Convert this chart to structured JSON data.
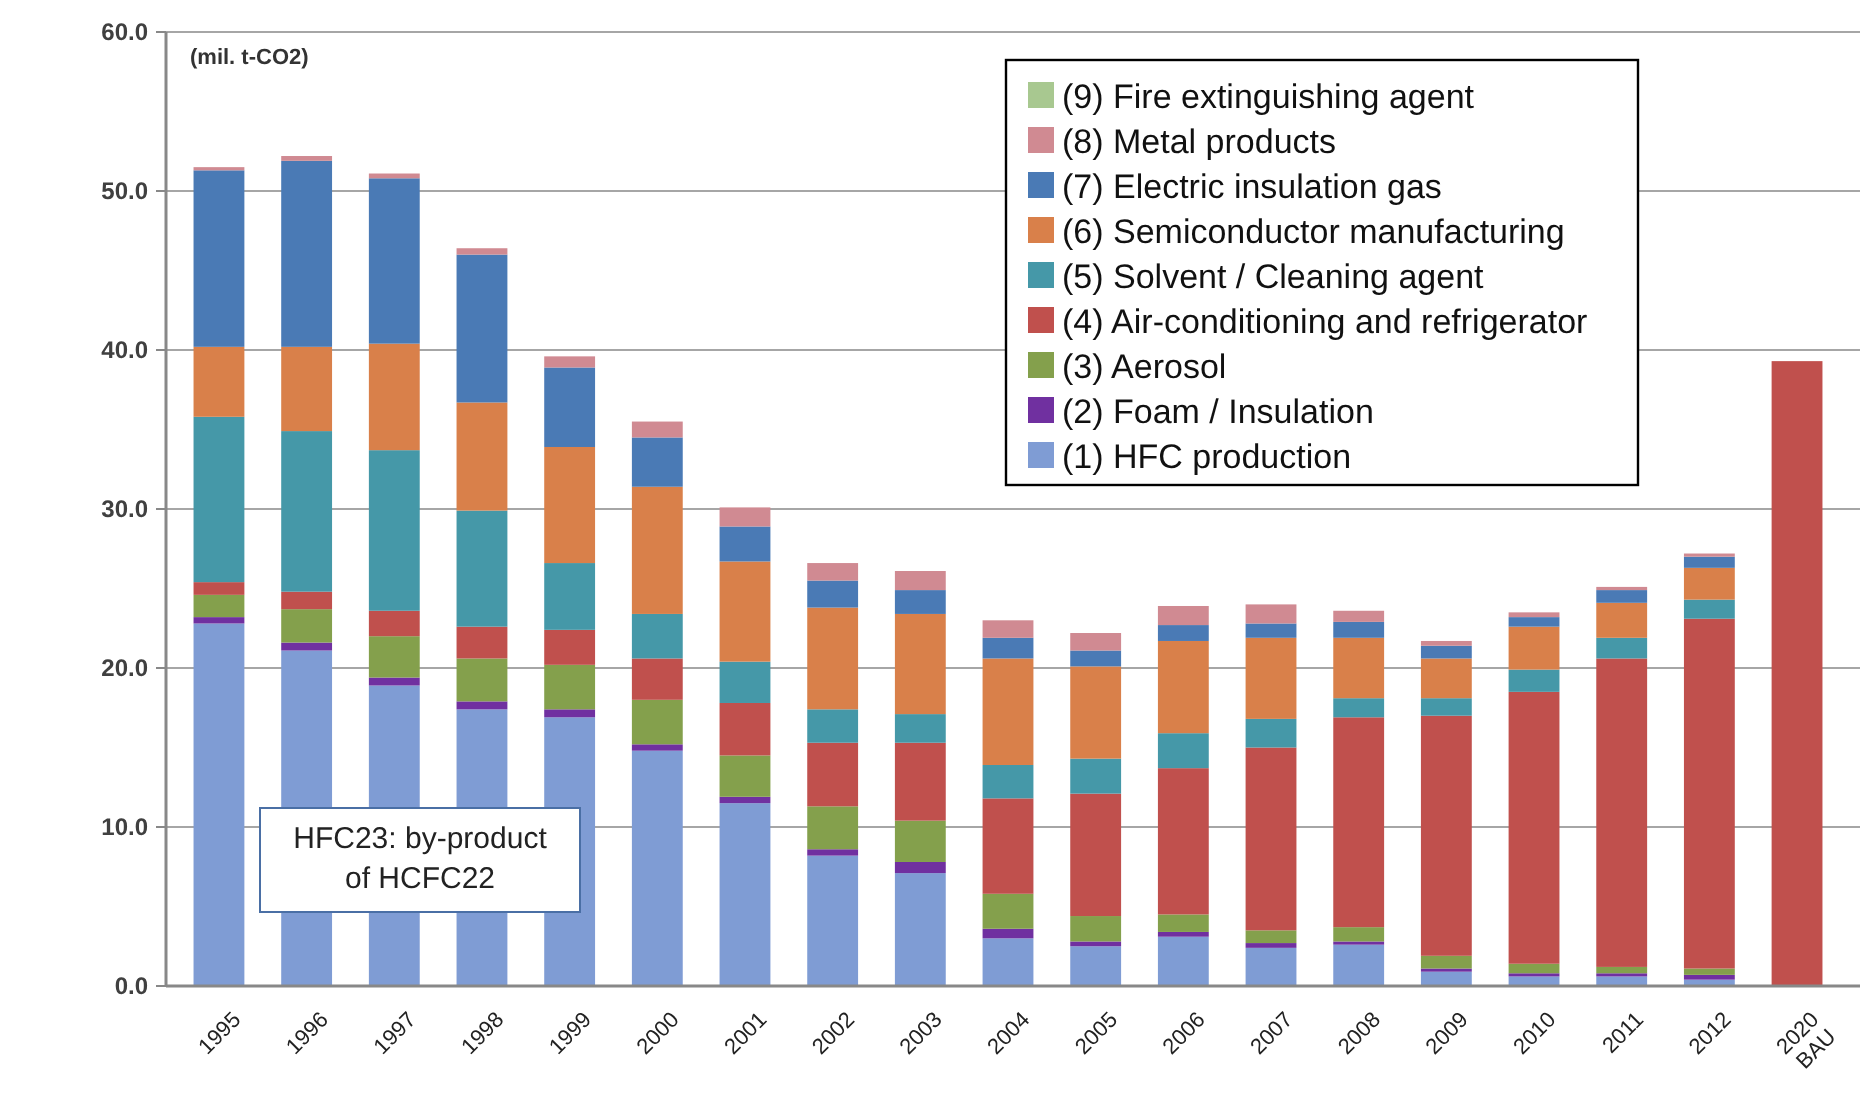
{
  "chart_data": {
    "type": "bar",
    "stacked": true,
    "ylabel": "(mil. t-CO2)",
    "annotations": [
      "HFC23: by-product\nof HCFC22"
    ],
    "categories": [
      "1995",
      "1996",
      "1997",
      "1998",
      "1999",
      "2000",
      "2001",
      "2002",
      "2003",
      "2004",
      "2005",
      "2006",
      "2007",
      "2008",
      "2009",
      "2010",
      "2011",
      "2012",
      "2020\nBAU"
    ],
    "ylim": [
      0,
      60
    ],
    "yticks": [
      {
        "value": 0,
        "label": "0.0"
      },
      {
        "value": 10,
        "label": "10.0"
      },
      {
        "value": 20,
        "label": "20.0"
      },
      {
        "value": 30,
        "label": "30.0"
      },
      {
        "value": 40,
        "label": "40.0"
      },
      {
        "value": 50,
        "label": "50.0"
      },
      {
        "value": 60,
        "label": "60.0"
      }
    ],
    "grid": "y",
    "legend": "top right",
    "series": [
      {
        "name": "(1) HFC production",
        "color": "#7f9cd4",
        "values": [
          22.8,
          21.1,
          18.9,
          17.4,
          16.9,
          14.8,
          11.5,
          8.2,
          7.1,
          3.0,
          2.5,
          3.1,
          2.4,
          2.6,
          0.9,
          0.6,
          0.6,
          0.4,
          null
        ]
      },
      {
        "name": "(2) Foam / Insulation",
        "color": "#7030a0",
        "values": [
          0.4,
          0.5,
          0.5,
          0.5,
          0.5,
          0.4,
          0.4,
          0.4,
          0.7,
          0.6,
          0.3,
          0.3,
          0.3,
          0.2,
          0.2,
          0.2,
          0.2,
          0.3,
          null
        ]
      },
      {
        "name": "(3) Aerosol",
        "color": "#84a04c",
        "values": [
          1.4,
          2.1,
          2.6,
          2.7,
          2.8,
          2.8,
          2.6,
          2.7,
          2.6,
          2.2,
          1.6,
          1.1,
          0.8,
          0.9,
          0.8,
          0.6,
          0.4,
          0.4,
          null
        ]
      },
      {
        "name": "(4) Air-conditioning and refrigerator",
        "color": "#c0504d",
        "values": [
          0.8,
          1.1,
          1.6,
          2.0,
          2.2,
          2.6,
          3.3,
          4.0,
          4.9,
          6.0,
          7.7,
          9.2,
          11.5,
          13.2,
          15.1,
          17.1,
          19.4,
          22.0,
          39.3
        ]
      },
      {
        "name": "(5) Solvent / Cleaning agent",
        "color": "#4598a8",
        "values": [
          10.4,
          10.1,
          10.1,
          7.3,
          4.2,
          2.8,
          2.6,
          2.1,
          1.8,
          2.1,
          2.2,
          2.2,
          1.8,
          1.2,
          1.1,
          1.4,
          1.3,
          1.2,
          null
        ]
      },
      {
        "name": "(6) Semiconductor manufacturing",
        "color": "#d9804a",
        "values": [
          4.4,
          5.3,
          6.7,
          6.8,
          7.3,
          8.0,
          6.3,
          6.4,
          6.3,
          6.7,
          5.8,
          5.8,
          5.1,
          3.8,
          2.5,
          2.7,
          2.2,
          2.0,
          null
        ]
      },
      {
        "name": "(7) Electric insulation gas",
        "color": "#4a7ab5",
        "values": [
          11.1,
          11.7,
          10.4,
          9.3,
          5.0,
          3.1,
          2.2,
          1.7,
          1.5,
          1.3,
          1.0,
          1.0,
          0.9,
          1.0,
          0.8,
          0.6,
          0.8,
          0.7,
          null
        ]
      },
      {
        "name": "(8) Metal products",
        "color": "#d08a92",
        "values": [
          0.2,
          0.3,
          0.3,
          0.4,
          0.7,
          1.0,
          1.2,
          1.1,
          1.2,
          1.1,
          1.1,
          1.2,
          1.2,
          0.7,
          0.3,
          0.3,
          0.2,
          0.2,
          null
        ]
      },
      {
        "name": "(9) Fire extinguishing agent",
        "color": "#a8c890",
        "values": [
          0,
          0,
          0,
          0,
          0,
          0,
          0,
          0,
          0,
          0,
          0,
          0,
          0,
          0,
          0,
          0,
          0,
          0,
          null
        ]
      }
    ]
  }
}
